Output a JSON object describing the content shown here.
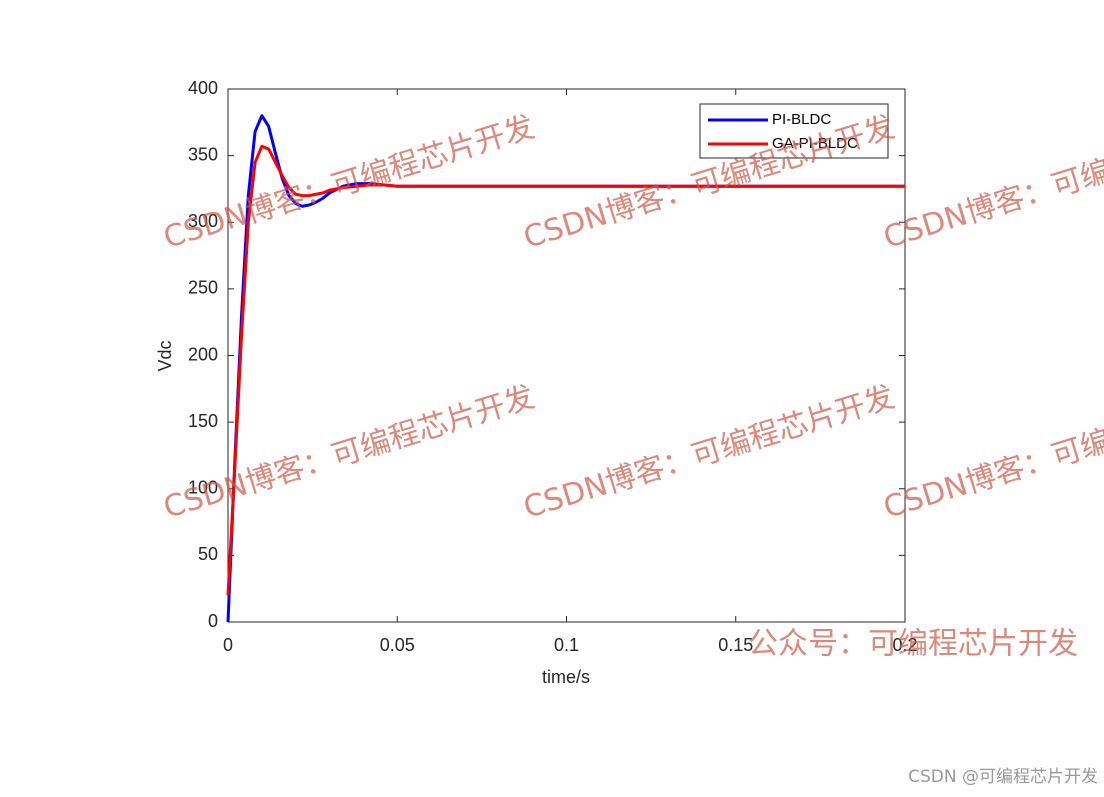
{
  "chart_data": {
    "type": "line",
    "xlabel": "time/s",
    "ylabel": "Vdc",
    "x": [
      0,
      0.002,
      0.004,
      0.006,
      0.008,
      0.01,
      0.012,
      0.014,
      0.016,
      0.018,
      0.02,
      0.022,
      0.024,
      0.026,
      0.028,
      0.03,
      0.034,
      0.038,
      0.042,
      0.046,
      0.05,
      0.055,
      0.06,
      0.07,
      0.08,
      0.1,
      0.15,
      0.2
    ],
    "series": [
      {
        "name": "PI-BLDC",
        "color": "#0000ff",
        "values": [
          0,
          120,
          230,
          320,
          368,
          380,
          372,
          352,
          333,
          320,
          314,
          312,
          313,
          315,
          318,
          322,
          327,
          329,
          329,
          328,
          327,
          327,
          327,
          327,
          327,
          327,
          327,
          327
        ]
      },
      {
        "name": "GA-PI-BLDC",
        "color": "#ff0000",
        "values": [
          20,
          115,
          215,
          300,
          345,
          357,
          355,
          345,
          335,
          326,
          321,
          320,
          320,
          321,
          322,
          324,
          326,
          327,
          328,
          328,
          327,
          327,
          327,
          327,
          327,
          327,
          327,
          327
        ]
      }
    ],
    "xlim": [
      0,
      0.2
    ],
    "xticks": [
      0,
      0.05,
      0.1,
      0.15,
      0.2
    ],
    "ylim": [
      0,
      400
    ],
    "yticks": [
      0,
      50,
      100,
      150,
      200,
      250,
      300,
      350,
      400
    ],
    "grid": false,
    "legend": "northeast",
    "watermark": "CSDN博客：可编程芯片开发",
    "footer_watermark": "公众号：可编程芯片开发",
    "credit": "CSDN @可编程芯片开发"
  }
}
